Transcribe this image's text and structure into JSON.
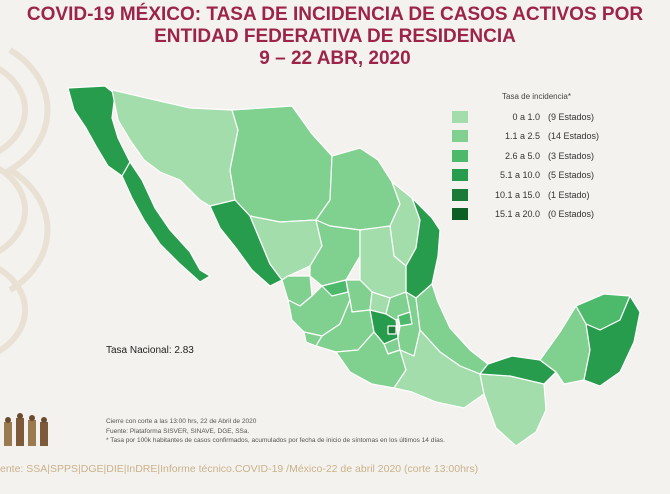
{
  "title": {
    "line1": "COVID-19 MÉXICO: TASA DE INCIDENCIA DE CASOS ACTIVOS POR",
    "line2": "ENTIDAD FEDERATIVA DE RESIDENCIA",
    "line3": "9 – 22 ABR, 2020"
  },
  "legend": {
    "title": "Tasa de incidencia*",
    "items": [
      {
        "range": "0 a 1.0",
        "count": "(9 Estados)",
        "color": "#a3ddab"
      },
      {
        "range": "1.1 a 2.5",
        "count": "(14 Estados)",
        "color": "#80d08f"
      },
      {
        "range": "2.6 a 5.0",
        "count": "(3 Estados)",
        "color": "#4cb96b"
      },
      {
        "range": "5.1 a 10.0",
        "count": "(5 Estados)",
        "color": "#289c4d"
      },
      {
        "range": "10.1 a 15.0",
        "count": "(1 Estado)",
        "color": "#1a7a36"
      },
      {
        "range": "15.1 a 20.0",
        "count": "(0 Estados)",
        "color": "#0c5e25"
      }
    ]
  },
  "tasa_nacional": "Tasa Nacional: 2.83",
  "notes": {
    "line1": "Cierre con corte a las 13:00 hrs, 22 de Abril de 2020",
    "line2": "Fuente: Plataforma SISVER, SINAVE, DGE, SSa.",
    "line3": "* Tasa por 100k habitantes de casos confirmados, acumulados por fecha de inicio de síntomas en los últimos 14 días."
  },
  "source": "ente: SSA|SPPS|DGE|DIE|InDRE|Informe técnico.COVID-19 /México-22 de abril 2020 (corte 13:00hrs)",
  "colors": {
    "title": "#9d2449",
    "background": "#f4f2ee",
    "border": "#ffffff"
  }
}
